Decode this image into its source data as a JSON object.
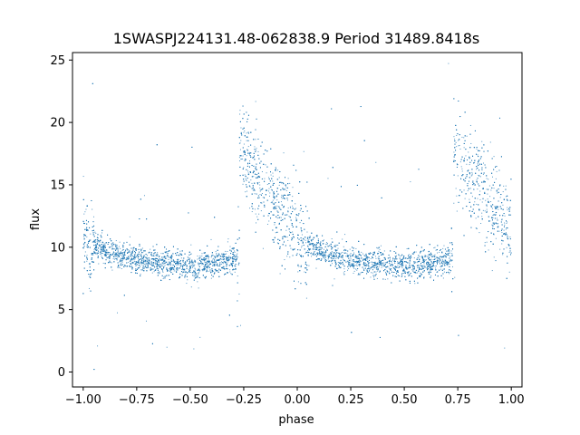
{
  "chart_data": {
    "type": "scatter",
    "title": "1SWASPJ224131.48-062838.9 Period 31489.8418s",
    "xlabel": "phase",
    "ylabel": "flux",
    "xlim": [
      -1.05,
      1.05
    ],
    "ylim": [
      -1.2,
      25.6
    ],
    "xticks": [
      -1.0,
      -0.75,
      -0.5,
      -0.25,
      0.0,
      0.25,
      0.5,
      0.75,
      1.0
    ],
    "xtick_labels": [
      "−1.00",
      "−0.75",
      "−0.50",
      "−0.25",
      "0.00",
      "0.25",
      "0.50",
      "0.75",
      "1.00"
    ],
    "yticks": [
      0,
      5,
      10,
      15,
      20,
      25
    ],
    "ytick_labels": [
      "0",
      "5",
      "10",
      "15",
      "20",
      "25"
    ],
    "grid": false,
    "point_color": "#1f77b4",
    "series": [
      {
        "name": "",
        "description_points": "folded light curve, phase in [-1,1], pattern repeats with period 1",
        "x": [
          -1.0,
          -0.95,
          -0.9,
          -0.85,
          -0.8,
          -0.75,
          -0.7,
          -0.65,
          -0.6,
          -0.55,
          -0.5,
          -0.45,
          -0.4,
          -0.35,
          -0.3,
          -0.27,
          -0.25,
          -0.2,
          -0.15,
          -0.1,
          -0.05,
          0.0,
          0.05,
          0.1,
          0.15,
          0.2,
          0.25,
          0.3,
          0.35,
          0.4,
          0.45,
          0.5,
          0.55,
          0.6,
          0.65,
          0.7,
          0.73,
          0.75,
          0.8,
          0.85,
          0.9,
          0.95,
          1.0
        ],
        "y": [
          10.8,
          10.0,
          9.6,
          9.3,
          9.1,
          8.9,
          8.7,
          8.6,
          8.5,
          8.4,
          8.4,
          8.5,
          8.6,
          8.7,
          9.0,
          16.0,
          16.5,
          15.5,
          14.5,
          13.5,
          12.0,
          10.8,
          10.0,
          9.6,
          9.3,
          9.1,
          8.9,
          8.7,
          8.6,
          8.5,
          8.4,
          8.4,
          8.5,
          8.6,
          8.7,
          9.0,
          16.0,
          16.5,
          15.5,
          14.5,
          13.5,
          12.0,
          10.8
        ]
      }
    ]
  }
}
